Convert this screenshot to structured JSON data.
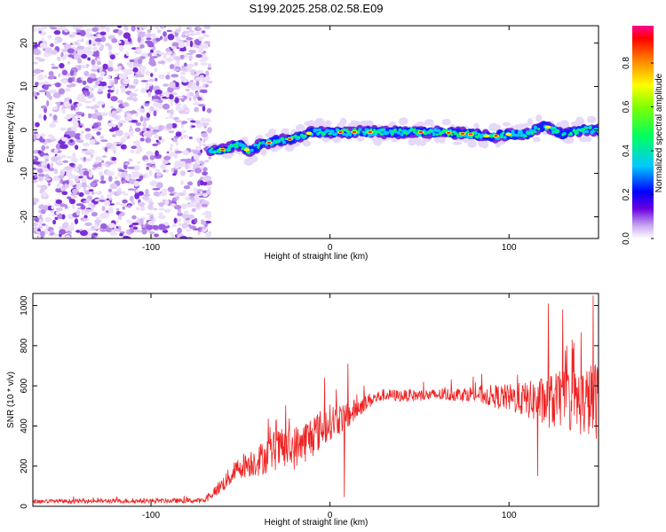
{
  "title": "S199.2025.258.02.58.E09",
  "chart_data": [
    {
      "type": "heatmap",
      "xlabel": "Height of straight line (km)",
      "ylabel": "Frequency (Hz)",
      "xlim": [
        -166,
        150
      ],
      "ylim": [
        -25,
        24
      ],
      "x_ticks": [
        -100,
        0,
        100
      ],
      "y_ticks": [
        -20,
        -10,
        0,
        10,
        20
      ],
      "noise_region_x": [
        -166,
        -67
      ],
      "signal_ridge": {
        "x": [
          -67,
          -60,
          -50,
          -45,
          -40,
          -30,
          -20,
          -10,
          0,
          20,
          40,
          60,
          80,
          90,
          100,
          110,
          120,
          130,
          140,
          150
        ],
        "freq": [
          -5,
          -4.5,
          -3.5,
          -5,
          -3.5,
          -2.5,
          -2,
          -0.5,
          -0.5,
          -0.5,
          -0.5,
          -0.5,
          -1,
          -1.5,
          -1,
          -1,
          1,
          -1,
          0,
          0
        ]
      },
      "colorbar": {
        "label": "Normalized spectral amplitude",
        "range": [
          0,
          0.97
        ],
        "ticks": [
          "0.0",
          "0.2",
          "0.4",
          "0.6",
          "0.8"
        ],
        "colors": [
          "#ffffff",
          "#c8a8f0",
          "#6a00e0",
          "#0000ff",
          "#00c0ff",
          "#00ff40",
          "#ffff00",
          "#ff8000",
          "#ff0000",
          "#ff0080"
        ]
      }
    },
    {
      "type": "line",
      "xlabel": "Height of straight line (km)",
      "ylabel": "SNR (10 * v/v)",
      "xlim": [
        -166,
        150
      ],
      "ylim": [
        0,
        1060
      ],
      "x_ticks": [
        -100,
        0,
        100
      ],
      "y_ticks": [
        0,
        200,
        400,
        600,
        800,
        1000
      ],
      "series": [
        {
          "name": "SNR",
          "color": "#ee2222",
          "envelope_x": [
            -166,
            -70,
            -60,
            -50,
            -40,
            -30,
            -20,
            -10,
            0,
            10,
            20,
            30,
            40,
            60,
            80,
            100,
            110,
            120,
            130,
            140,
            150
          ],
          "envelope_y": [
            25,
            28,
            110,
            200,
            230,
            280,
            290,
            350,
            420,
            450,
            520,
            555,
            550,
            555,
            560,
            540,
            530,
            520,
            530,
            520,
            530
          ],
          "spread_y": [
            10,
            12,
            40,
            60,
            80,
            100,
            110,
            110,
            90,
            70,
            40,
            30,
            30,
            30,
            40,
            70,
            90,
            130,
            150,
            170,
            200
          ],
          "spikes": [
            [
              10,
              710
            ],
            [
              -3,
              640
            ],
            [
              8,
              45
            ],
            [
              122,
              1010
            ],
            [
              130,
              980
            ],
            [
              147,
              1050
            ],
            [
              116,
              150
            ]
          ]
        }
      ]
    }
  ]
}
